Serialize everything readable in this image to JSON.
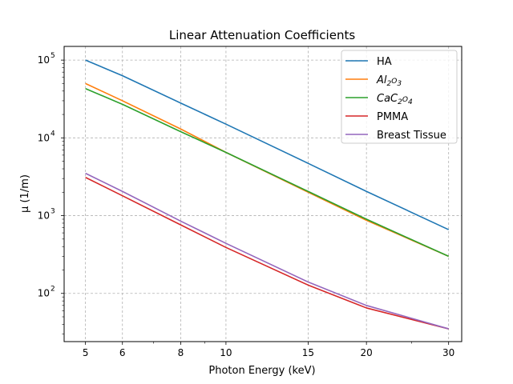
{
  "chart_data": {
    "type": "line",
    "title": "Linear Attenuation Coefficients",
    "xlabel": "Photon Energy (keV)",
    "ylabel": "μ (1/m)",
    "xscale": "log",
    "yscale": "log",
    "xlim": [
      4.5,
      32
    ],
    "ylim": [
      24,
      150000
    ],
    "xticks": [
      5,
      6,
      8,
      10,
      15,
      20,
      30
    ],
    "xtick_labels": [
      "5",
      "6",
      "8",
      "10",
      "15",
      "20",
      "30"
    ],
    "yticks": [
      100,
      1000,
      10000,
      100000
    ],
    "ytick_labels": [
      "10",
      "10",
      "10",
      "10"
    ],
    "ytick_exponents": [
      "2",
      "3",
      "4",
      "5"
    ],
    "grid": true,
    "legend_position": "top-right",
    "x": [
      5,
      6,
      8,
      10,
      15,
      20,
      30
    ],
    "series": [
      {
        "name": "HA",
        "name_main": "HA",
        "color": "#1f77b4",
        "values": [
          100000,
          63000,
          28000,
          15000,
          4700,
          2050,
          660
        ]
      },
      {
        "name": "Al2O3",
        "name_main": "Al",
        "sub1": "2",
        "mid": "O",
        "sub2": "3",
        "color": "#ff7f0e",
        "values": [
          50000,
          30000,
          13000,
          6500,
          2000,
          870,
          300
        ]
      },
      {
        "name": "CaC2O4",
        "name_main": "CaC",
        "sub1": "2",
        "mid": "O",
        "sub2": "4",
        "color": "#2ca02c",
        "values": [
          43000,
          27000,
          12000,
          6500,
          2050,
          900,
          300
        ]
      },
      {
        "name": "PMMA",
        "name_main": "PMMA",
        "color": "#d62728",
        "values": [
          3100,
          1800,
          760,
          390,
          128,
          65,
          35
        ]
      },
      {
        "name": "Breast Tissue",
        "name_main": "Breast Tissue",
        "color": "#9467bd",
        "values": [
          3500,
          2050,
          850,
          440,
          140,
          70,
          35
        ]
      }
    ]
  }
}
